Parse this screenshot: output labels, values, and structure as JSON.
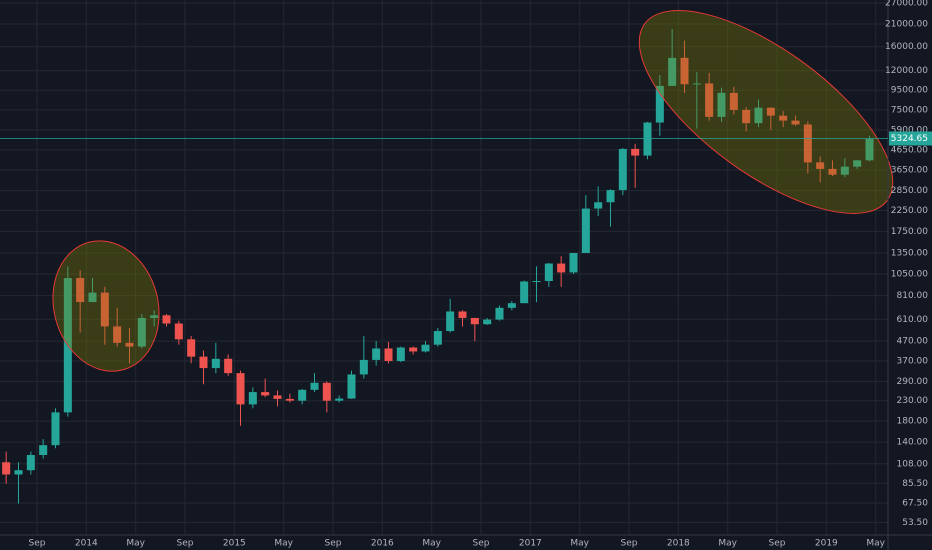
{
  "chart_data": {
    "type": "candlestick",
    "colors": {
      "up": "#26a69a",
      "down": "#ef5350"
    },
    "log_scale": true,
    "grid": true,
    "x": [
      "2013-06",
      "2013-07",
      "2013-08",
      "2013-09",
      "2013-10",
      "2013-11",
      "2013-12",
      "2014-01",
      "2014-02",
      "2014-03",
      "2014-04",
      "2014-05",
      "2014-06",
      "2014-07",
      "2014-08",
      "2014-09",
      "2014-10",
      "2014-11",
      "2014-12",
      "2015-01",
      "2015-02",
      "2015-03",
      "2015-04",
      "2015-05",
      "2015-06",
      "2015-07",
      "2015-08",
      "2015-09",
      "2015-10",
      "2015-11",
      "2015-12",
      "2016-01",
      "2016-02",
      "2016-03",
      "2016-04",
      "2016-05",
      "2016-06",
      "2016-07",
      "2016-08",
      "2016-09",
      "2016-10",
      "2016-11",
      "2016-12",
      "2017-01",
      "2017-02",
      "2017-03",
      "2017-04",
      "2017-05",
      "2017-06",
      "2017-07",
      "2017-08",
      "2017-09",
      "2017-10",
      "2017-11",
      "2017-12",
      "2018-01",
      "2018-02",
      "2018-03",
      "2018-04",
      "2018-05",
      "2018-06",
      "2018-07",
      "2018-08",
      "2018-09",
      "2018-10",
      "2018-11",
      "2018-12",
      "2019-01",
      "2019-02",
      "2019-03",
      "2019-04"
    ],
    "open": [
      110,
      95,
      100,
      120,
      135,
      200,
      1000,
      750,
      840,
      560,
      460,
      440,
      620,
      640,
      580,
      480,
      390,
      340,
      380,
      320,
      220,
      255,
      245,
      235,
      230,
      262,
      285,
      230,
      236,
      315,
      375,
      430,
      370,
      435,
      415,
      450,
      530,
      670,
      620,
      575,
      608,
      700,
      740,
      960,
      965,
      1190,
      1070,
      1350,
      2300,
      2480,
      2870,
      4700,
      4340,
      6450,
      10000,
      14000,
      10200,
      10300,
      6900,
      9200,
      7500,
      6400,
      7700,
      7000,
      6600,
      6300,
      4000,
      3700,
      3450,
      3800,
      4100
    ],
    "high": [
      125,
      110,
      125,
      145,
      210,
      1150,
      1100,
      1000,
      900,
      700,
      550,
      650,
      680,
      650,
      600,
      500,
      420,
      460,
      400,
      330,
      270,
      300,
      260,
      250,
      265,
      320,
      290,
      245,
      330,
      500,
      470,
      465,
      440,
      440,
      470,
      550,
      780,
      680,
      620,
      620,
      720,
      760,
      970,
      1150,
      1200,
      1300,
      1350,
      2700,
      3000,
      2900,
      4750,
      5000,
      6500,
      11400,
      19800,
      17200,
      11800,
      11700,
      9800,
      9900,
      7750,
      8500,
      7750,
      7400,
      7000,
      6550,
      4300,
      4100,
      4200,
      4100,
      5500
    ],
    "low": [
      85,
      67,
      95,
      115,
      130,
      190,
      520,
      750,
      450,
      440,
      360,
      430,
      560,
      560,
      450,
      360,
      280,
      320,
      310,
      170,
      210,
      240,
      215,
      225,
      220,
      255,
      200,
      225,
      235,
      300,
      350,
      360,
      365,
      400,
      410,
      440,
      520,
      560,
      470,
      570,
      600,
      680,
      740,
      750,
      900,
      900,
      1050,
      1350,
      2100,
      1850,
      2700,
      2950,
      4150,
      5500,
      10000,
      9200,
      6000,
      6600,
      6500,
      7100,
      5800,
      6100,
      5900,
      6100,
      6200,
      3500,
      3150,
      3400,
      3350,
      3700,
      4050
    ],
    "close": [
      95,
      100,
      120,
      135,
      200,
      1000,
      750,
      840,
      560,
      460,
      440,
      620,
      640,
      580,
      480,
      390,
      340,
      380,
      320,
      220,
      255,
      245,
      235,
      230,
      262,
      285,
      230,
      236,
      315,
      375,
      430,
      370,
      435,
      415,
      450,
      530,
      670,
      620,
      575,
      608,
      700,
      740,
      960,
      965,
      1190,
      1070,
      1350,
      2300,
      2480,
      2870,
      4700,
      4340,
      6450,
      10000,
      14000,
      10200,
      10300,
      6900,
      9200,
      7500,
      6400,
      7700,
      7000,
      6600,
      6300,
      4000,
      3700,
      3450,
      3800,
      4100,
      5300
    ],
    "xlim": [
      "2013-06",
      "2019-06"
    ],
    "xticks": [
      {
        "value": "2013-09",
        "label": "Sep"
      },
      {
        "value": "2014-01",
        "label": "2014"
      },
      {
        "value": "2014-05",
        "label": "May"
      },
      {
        "value": "2014-09",
        "label": "Sep"
      },
      {
        "value": "2015-01",
        "label": "2015"
      },
      {
        "value": "2015-05",
        "label": "May"
      },
      {
        "value": "2015-09",
        "label": "Sep"
      },
      {
        "value": "2016-01",
        "label": "2016"
      },
      {
        "value": "2016-05",
        "label": "May"
      },
      {
        "value": "2016-09",
        "label": "Sep"
      },
      {
        "value": "2017-01",
        "label": "2017"
      },
      {
        "value": "2017-05",
        "label": "May"
      },
      {
        "value": "2017-09",
        "label": "Sep"
      },
      {
        "value": "2018-01",
        "label": "2018"
      },
      {
        "value": "2018-05",
        "label": "May"
      },
      {
        "value": "2018-09",
        "label": "Sep"
      },
      {
        "value": "2019-01",
        "label": "2019"
      },
      {
        "value": "2019-05",
        "label": "May"
      }
    ],
    "ylim": [
      46,
      28000
    ],
    "yticks": [
      {
        "value": 27000,
        "label": "27000.00"
      },
      {
        "value": 21000,
        "label": "21000.00"
      },
      {
        "value": 16000,
        "label": "16000.00"
      },
      {
        "value": 12000,
        "label": "12000.00"
      },
      {
        "value": 9500,
        "label": "9500.00"
      },
      {
        "value": 7500,
        "label": "7500.00"
      },
      {
        "value": 5900,
        "label": "5900.00"
      },
      {
        "value": 4650,
        "label": "4650.00"
      },
      {
        "value": 3650,
        "label": "3650.00"
      },
      {
        "value": 2850,
        "label": "2850.00"
      },
      {
        "value": 2250,
        "label": "2250.00"
      },
      {
        "value": 1750,
        "label": "1750.00"
      },
      {
        "value": 1350,
        "label": "1350.00"
      },
      {
        "value": 1050,
        "label": "1050.00"
      },
      {
        "value": 810,
        "label": "810.00"
      },
      {
        "value": 610,
        "label": "610.00"
      },
      {
        "value": 470,
        "label": "470.00"
      },
      {
        "value": 370,
        "label": "370.00"
      },
      {
        "value": 290,
        "label": "290.00"
      },
      {
        "value": 230,
        "label": "230.00"
      },
      {
        "value": 180,
        "label": "180.00"
      },
      {
        "value": 140,
        "label": "140.00"
      },
      {
        "value": 108,
        "label": "108.00"
      },
      {
        "value": 85.5,
        "label": "85.50"
      },
      {
        "value": 67.5,
        "label": "67.50"
      },
      {
        "value": 53.5,
        "label": "53.50"
      }
    ],
    "last_price": {
      "value": 5324.65,
      "label": "5324.65"
    }
  }
}
